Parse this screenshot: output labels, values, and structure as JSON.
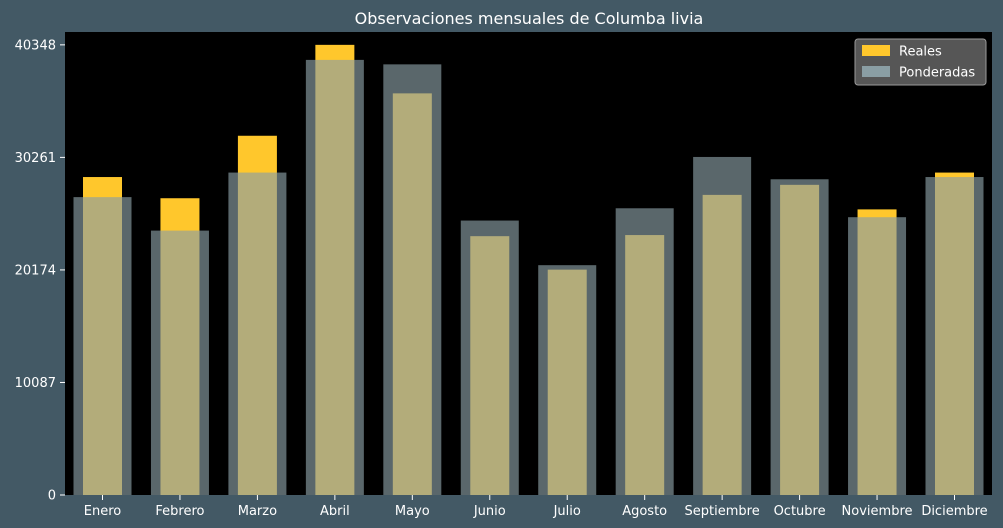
{
  "chart_data": {
    "type": "bar",
    "title": "Observaciones mensuales de Columba livia",
    "xlabel": "",
    "ylabel": "",
    "categories": [
      "Enero",
      "Febrero",
      "Marzo",
      "Abril",
      "Mayo",
      "Junio",
      "Julio",
      "Agosto",
      "Septiembre",
      "Octubre",
      "Noviembre",
      "Diciembre"
    ],
    "series": [
      {
        "name": "Reales",
        "color": "#ffc72c",
        "values": [
          28500,
          26600,
          32200,
          40348,
          36000,
          23200,
          20200,
          23300,
          26900,
          27800,
          25600,
          28900
        ]
      },
      {
        "name": "Ponderadas",
        "color": "#8a9ea4",
        "values": [
          26700,
          23700,
          28900,
          39000,
          38600,
          24600,
          20600,
          25700,
          30300,
          28300,
          24900,
          28500
        ]
      }
    ],
    "yticks": [
      0,
      10087,
      20174,
      30261,
      40348
    ],
    "ylim": [
      0,
      41500
    ],
    "legend_position": "top-right",
    "overlap_color": "#d6d18a",
    "plot_background": "#000000",
    "figure_background": "#435965"
  }
}
